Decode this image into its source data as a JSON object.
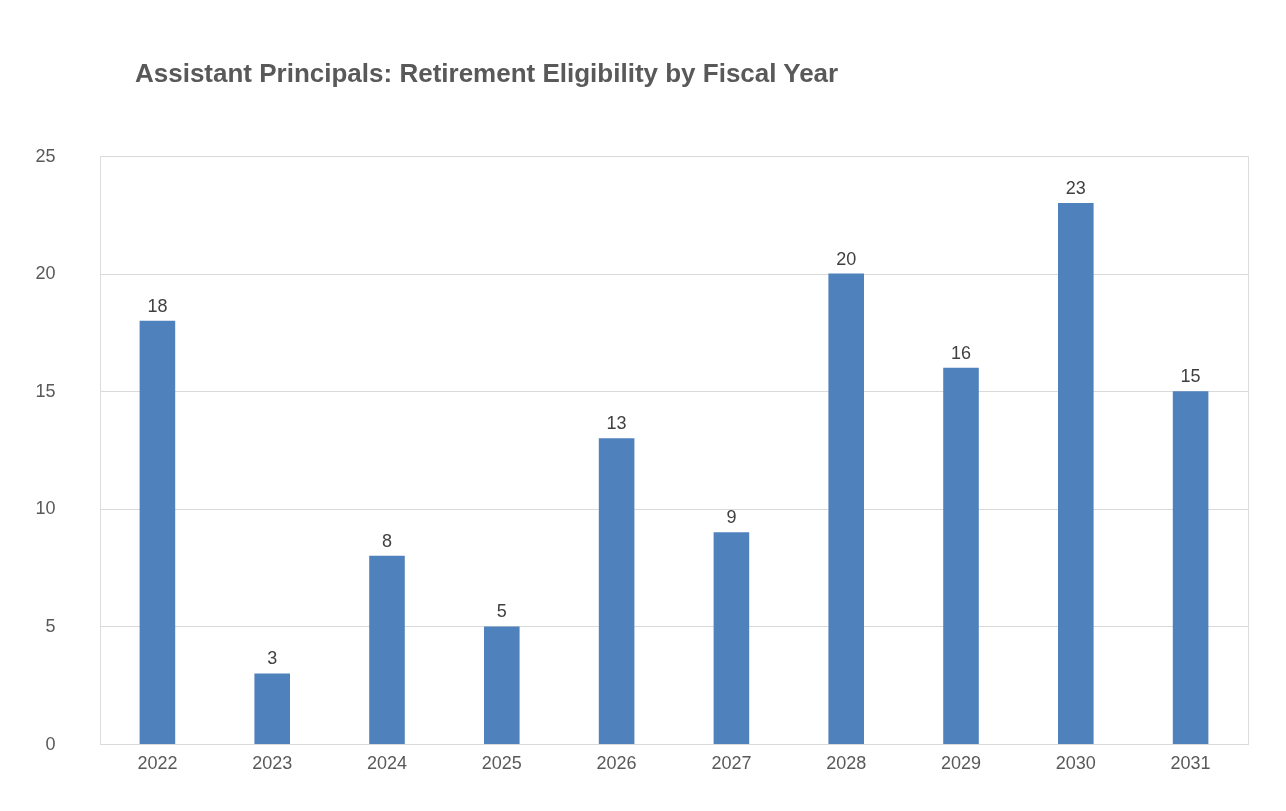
{
  "chart_data": {
    "type": "bar",
    "title": "Assistant Principals: Retirement Eligibility by Fiscal Year",
    "categories": [
      "2022",
      "2023",
      "2024",
      "2025",
      "2026",
      "2027",
      "2028",
      "2029",
      "2030",
      "2031"
    ],
    "values": [
      18,
      3,
      8,
      5,
      13,
      9,
      20,
      16,
      23,
      15
    ],
    "color": "#4f81bd",
    "ylim": [
      0,
      25
    ],
    "yticks": [
      0,
      5,
      10,
      15,
      20,
      25
    ],
    "grid": "y",
    "data_labels": true
  }
}
